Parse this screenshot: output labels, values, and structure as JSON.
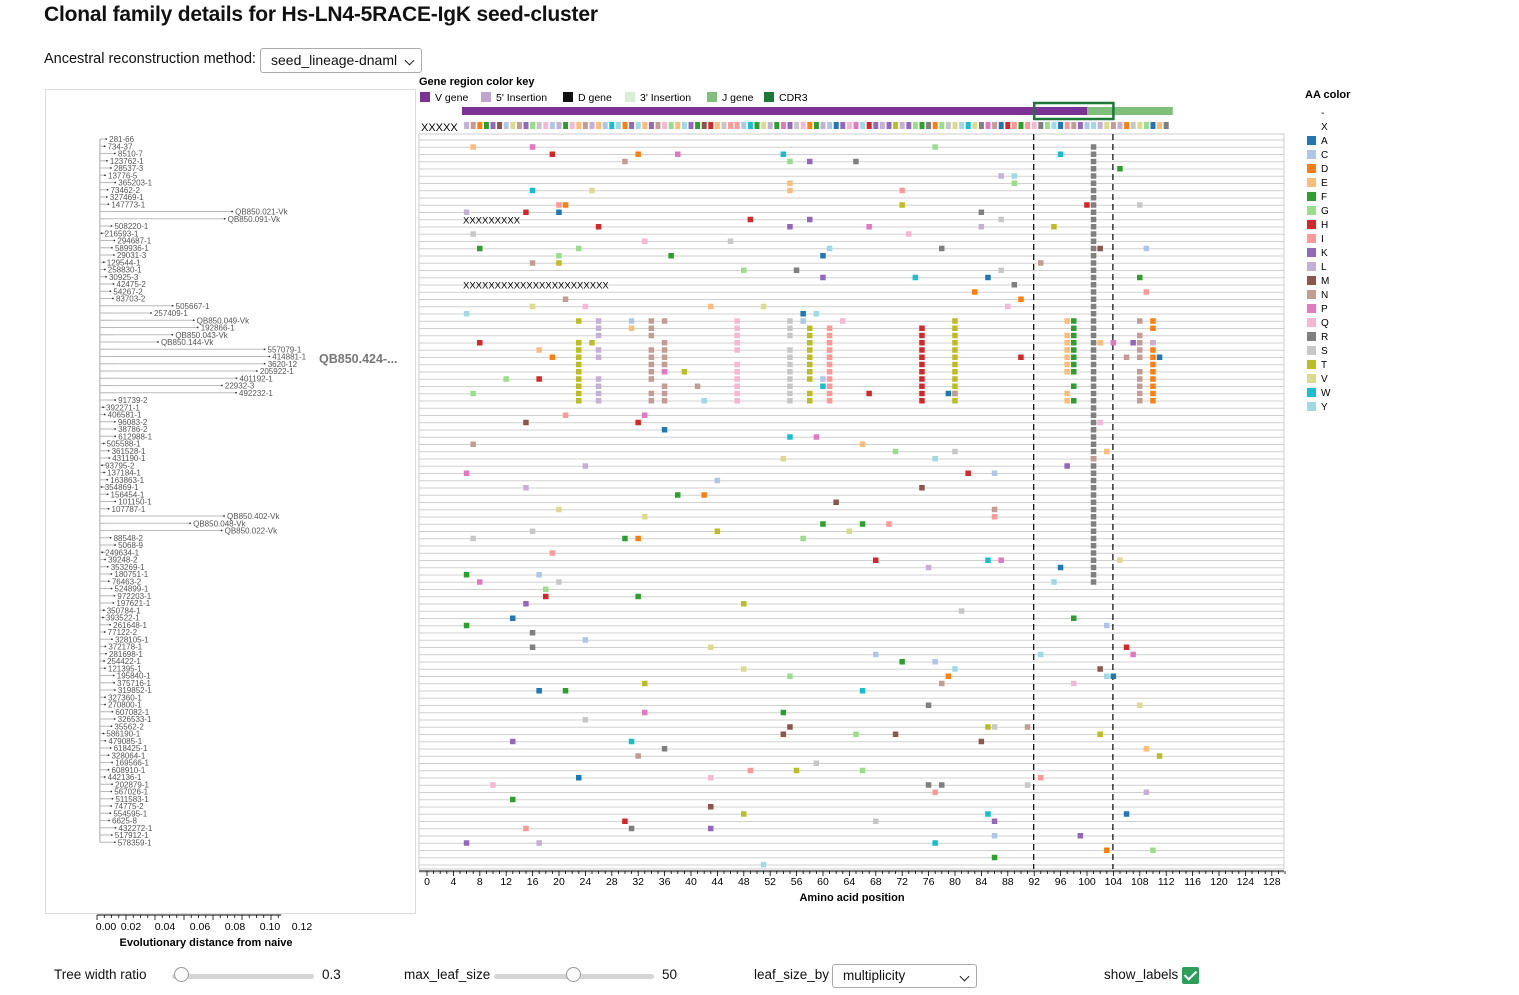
{
  "page": {
    "title": "Clonal family details for Hs-LN4-5RACE-IgK seed-cluster"
  },
  "method": {
    "label": "Ancestral reconstruction method:",
    "value": "seed_lineage-dnaml"
  },
  "gene_key": {
    "title": "Gene region color key",
    "items": [
      {
        "label": "V gene",
        "color": "#7b3294"
      },
      {
        "label": "5' Insertion",
        "color": "#c2a5cf"
      },
      {
        "label": "D gene",
        "color": "#111111"
      },
      {
        "label": "3' Insertion",
        "color": "#d9efd3"
      },
      {
        "label": "J gene",
        "color": "#7fbf7b"
      },
      {
        "label": "CDR3",
        "color": "#1b7837"
      }
    ]
  },
  "aa_key": {
    "title": "AA color",
    "items": [
      {
        "label": "-",
        "color": ""
      },
      {
        "label": "X",
        "color": ""
      },
      {
        "label": "A",
        "color": "#1f77b4"
      },
      {
        "label": "C",
        "color": "#aec7e8"
      },
      {
        "label": "D",
        "color": "#ff7f0e"
      },
      {
        "label": "E",
        "color": "#ffbb78"
      },
      {
        "label": "F",
        "color": "#2ca02c"
      },
      {
        "label": "G",
        "color": "#98df8a"
      },
      {
        "label": "H",
        "color": "#d62728"
      },
      {
        "label": "I",
        "color": "#ff9896"
      },
      {
        "label": "K",
        "color": "#9467bd"
      },
      {
        "label": "L",
        "color": "#c5b0d5"
      },
      {
        "label": "M",
        "color": "#8c564b"
      },
      {
        "label": "N",
        "color": "#c49c94"
      },
      {
        "label": "P",
        "color": "#e377c2"
      },
      {
        "label": "Q",
        "color": "#f7b6d2"
      },
      {
        "label": "R",
        "color": "#7f7f7f"
      },
      {
        "label": "S",
        "color": "#c7c7c7"
      },
      {
        "label": "T",
        "color": "#bcbd22"
      },
      {
        "label": "V",
        "color": "#dbdb8d"
      },
      {
        "label": "W",
        "color": "#17becf"
      },
      {
        "label": "Y",
        "color": "#9edae5"
      }
    ]
  },
  "alignment": {
    "x_axis_label": "Amino acid position",
    "x_ticks": [
      "0",
      "4",
      "8",
      "12",
      "16",
      "20",
      "24",
      "28",
      "32",
      "36",
      "40",
      "44",
      "48",
      "52",
      "56",
      "60",
      "64",
      "68",
      "72",
      "76",
      "80",
      "84",
      "88",
      "92",
      "96",
      "100",
      "104",
      "108",
      "112",
      "116",
      "120",
      "124",
      "128"
    ],
    "x_range": [
      0,
      130
    ],
    "cdr3_start": 92,
    "cdr3_end": 104,
    "rows": 102,
    "leading_x": "XXXXX",
    "row_x_strings": [
      {
        "row": 11,
        "text": "XXXXXXXXX"
      },
      {
        "row": 20,
        "text": "XXXXXXXXXXXXXXXXXXXXXXX"
      }
    ]
  },
  "tree": {
    "x_axis_label": "Evolutionary distance from naive",
    "x_ticks": [
      "0.00",
      "0.02",
      "0.04",
      "0.06",
      "0.08",
      "0.10",
      "0.12"
    ],
    "x_range": [
      0,
      0.12
    ],
    "seed_label": "QB850.424-...",
    "leaves": [
      "281-66",
      "734-37",
      "8510-7",
      "123762-1",
      "28537-3",
      "13776-5",
      "365203-1",
      "73462-2",
      "327469-1",
      "147773-1",
      "QB850.021-Vk",
      "QB850.091-Vk",
      "508220-1",
      "216593-1",
      "294687-1",
      "589936-1",
      "29031-3",
      "129544-1",
      "258830-1",
      "30925-3",
      "42475-2",
      "54267-2",
      "83703-2",
      "505667-1",
      "257409-1",
      "QB850.049-Vk",
      "192866-1",
      "QB850.043-Vk",
      "QB850.144-Vk",
      "557079-1",
      "414881-1",
      "3620-12",
      "205922-1",
      "401192-1",
      "22932-3",
      "492232-1",
      "91739-2",
      "392271-1",
      "406581-1",
      "96083-2",
      "38786-2",
      "612988-1",
      "505588-1",
      "361528-1",
      "431190-1",
      "93795-2",
      "137184-1",
      "163863-1",
      "354869-1",
      "156454-1",
      "101150-1",
      "107787-1",
      "QB850.402-Vk",
      "QB850.048-Vk",
      "QB850.022-Vk",
      "88548-2",
      "5068-9",
      "249634-1",
      "39248-2",
      "353269-1",
      "180751-1",
      "76463-2",
      "524899-1",
      "972203-1",
      "197621-1",
      "350784-1",
      "393522-1",
      "261648-1",
      "77122-2",
      "328105-1",
      "372178-1",
      "281698-1",
      "254422-1",
      "121395-1",
      "195840-1",
      "375716-1",
      "319852-1",
      "327360-1",
      "270800-1",
      "607082-1",
      "326533-1",
      "35562-2",
      "586190-1",
      "479085-1",
      "618425-1",
      "328064-1",
      "169566-1",
      "608910-1",
      "442136-1",
      "202879-1",
      "567026-1",
      "511583-1",
      "74775-2",
      "554595-1",
      "6625-8",
      "432272-1",
      "517912-1",
      "578359-1"
    ]
  },
  "controls": {
    "tree_width_ratio_label": "Tree width ratio",
    "tree_width_ratio_value": "0.3",
    "tree_width_ratio": 0.3,
    "max_leaf_size_label": "max_leaf_size",
    "max_leaf_size_value": "50",
    "max_leaf_size": 50,
    "leaf_size_by_label": "leaf_size_by",
    "leaf_size_by_value": "multiplicity",
    "show_labels_label": "show_labels",
    "show_labels_checked": true
  }
}
